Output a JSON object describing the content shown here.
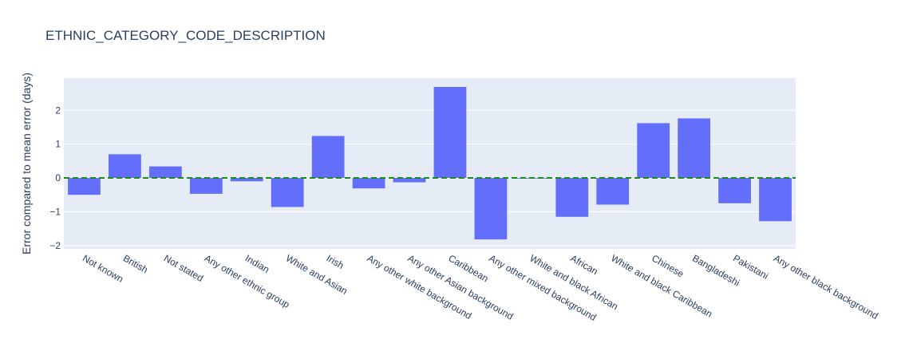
{
  "chart_data": {
    "type": "bar",
    "title": "ETHNIC_CATEGORY_CODE_DESCRIPTION",
    "xlabel": "",
    "ylabel": "Error compared to mean error (days)",
    "ylim": [
      -2.1,
      2.95
    ],
    "yticks": [
      {
        "value": 2,
        "label": "2"
      },
      {
        "value": 1,
        "label": "1"
      },
      {
        "value": 0,
        "label": "0"
      },
      {
        "value": -1,
        "label": "−1"
      },
      {
        "value": -2,
        "label": "−2"
      }
    ],
    "categories": [
      "Not known",
      "British",
      "Not stated",
      "Any other ethnic group",
      "Indian",
      "White and Asian",
      "Irish",
      "Any other white background",
      "Any other Asian background",
      "Caribbean",
      "Any other mixed background",
      "White and black African",
      "African",
      "White and black Caribbean",
      "Chinese",
      "Bangladeshi",
      "Pakistani",
      "Any other black background"
    ],
    "values": [
      -0.5,
      0.7,
      0.34,
      -0.47,
      -0.1,
      -0.86,
      1.24,
      -0.31,
      -0.13,
      2.69,
      -1.82,
      -0.02,
      -1.15,
      -0.79,
      1.62,
      1.76,
      -0.75,
      -1.28
    ],
    "colors": {
      "bar": "#636efa",
      "plot_bg": "#e5ecf6",
      "grid": "#ffffff",
      "reference_line": "#1a8a1a",
      "text": "#2a3f5f"
    },
    "reference_line": {
      "value": 0,
      "style": "dashed"
    },
    "grid": true,
    "legend": "none"
  }
}
